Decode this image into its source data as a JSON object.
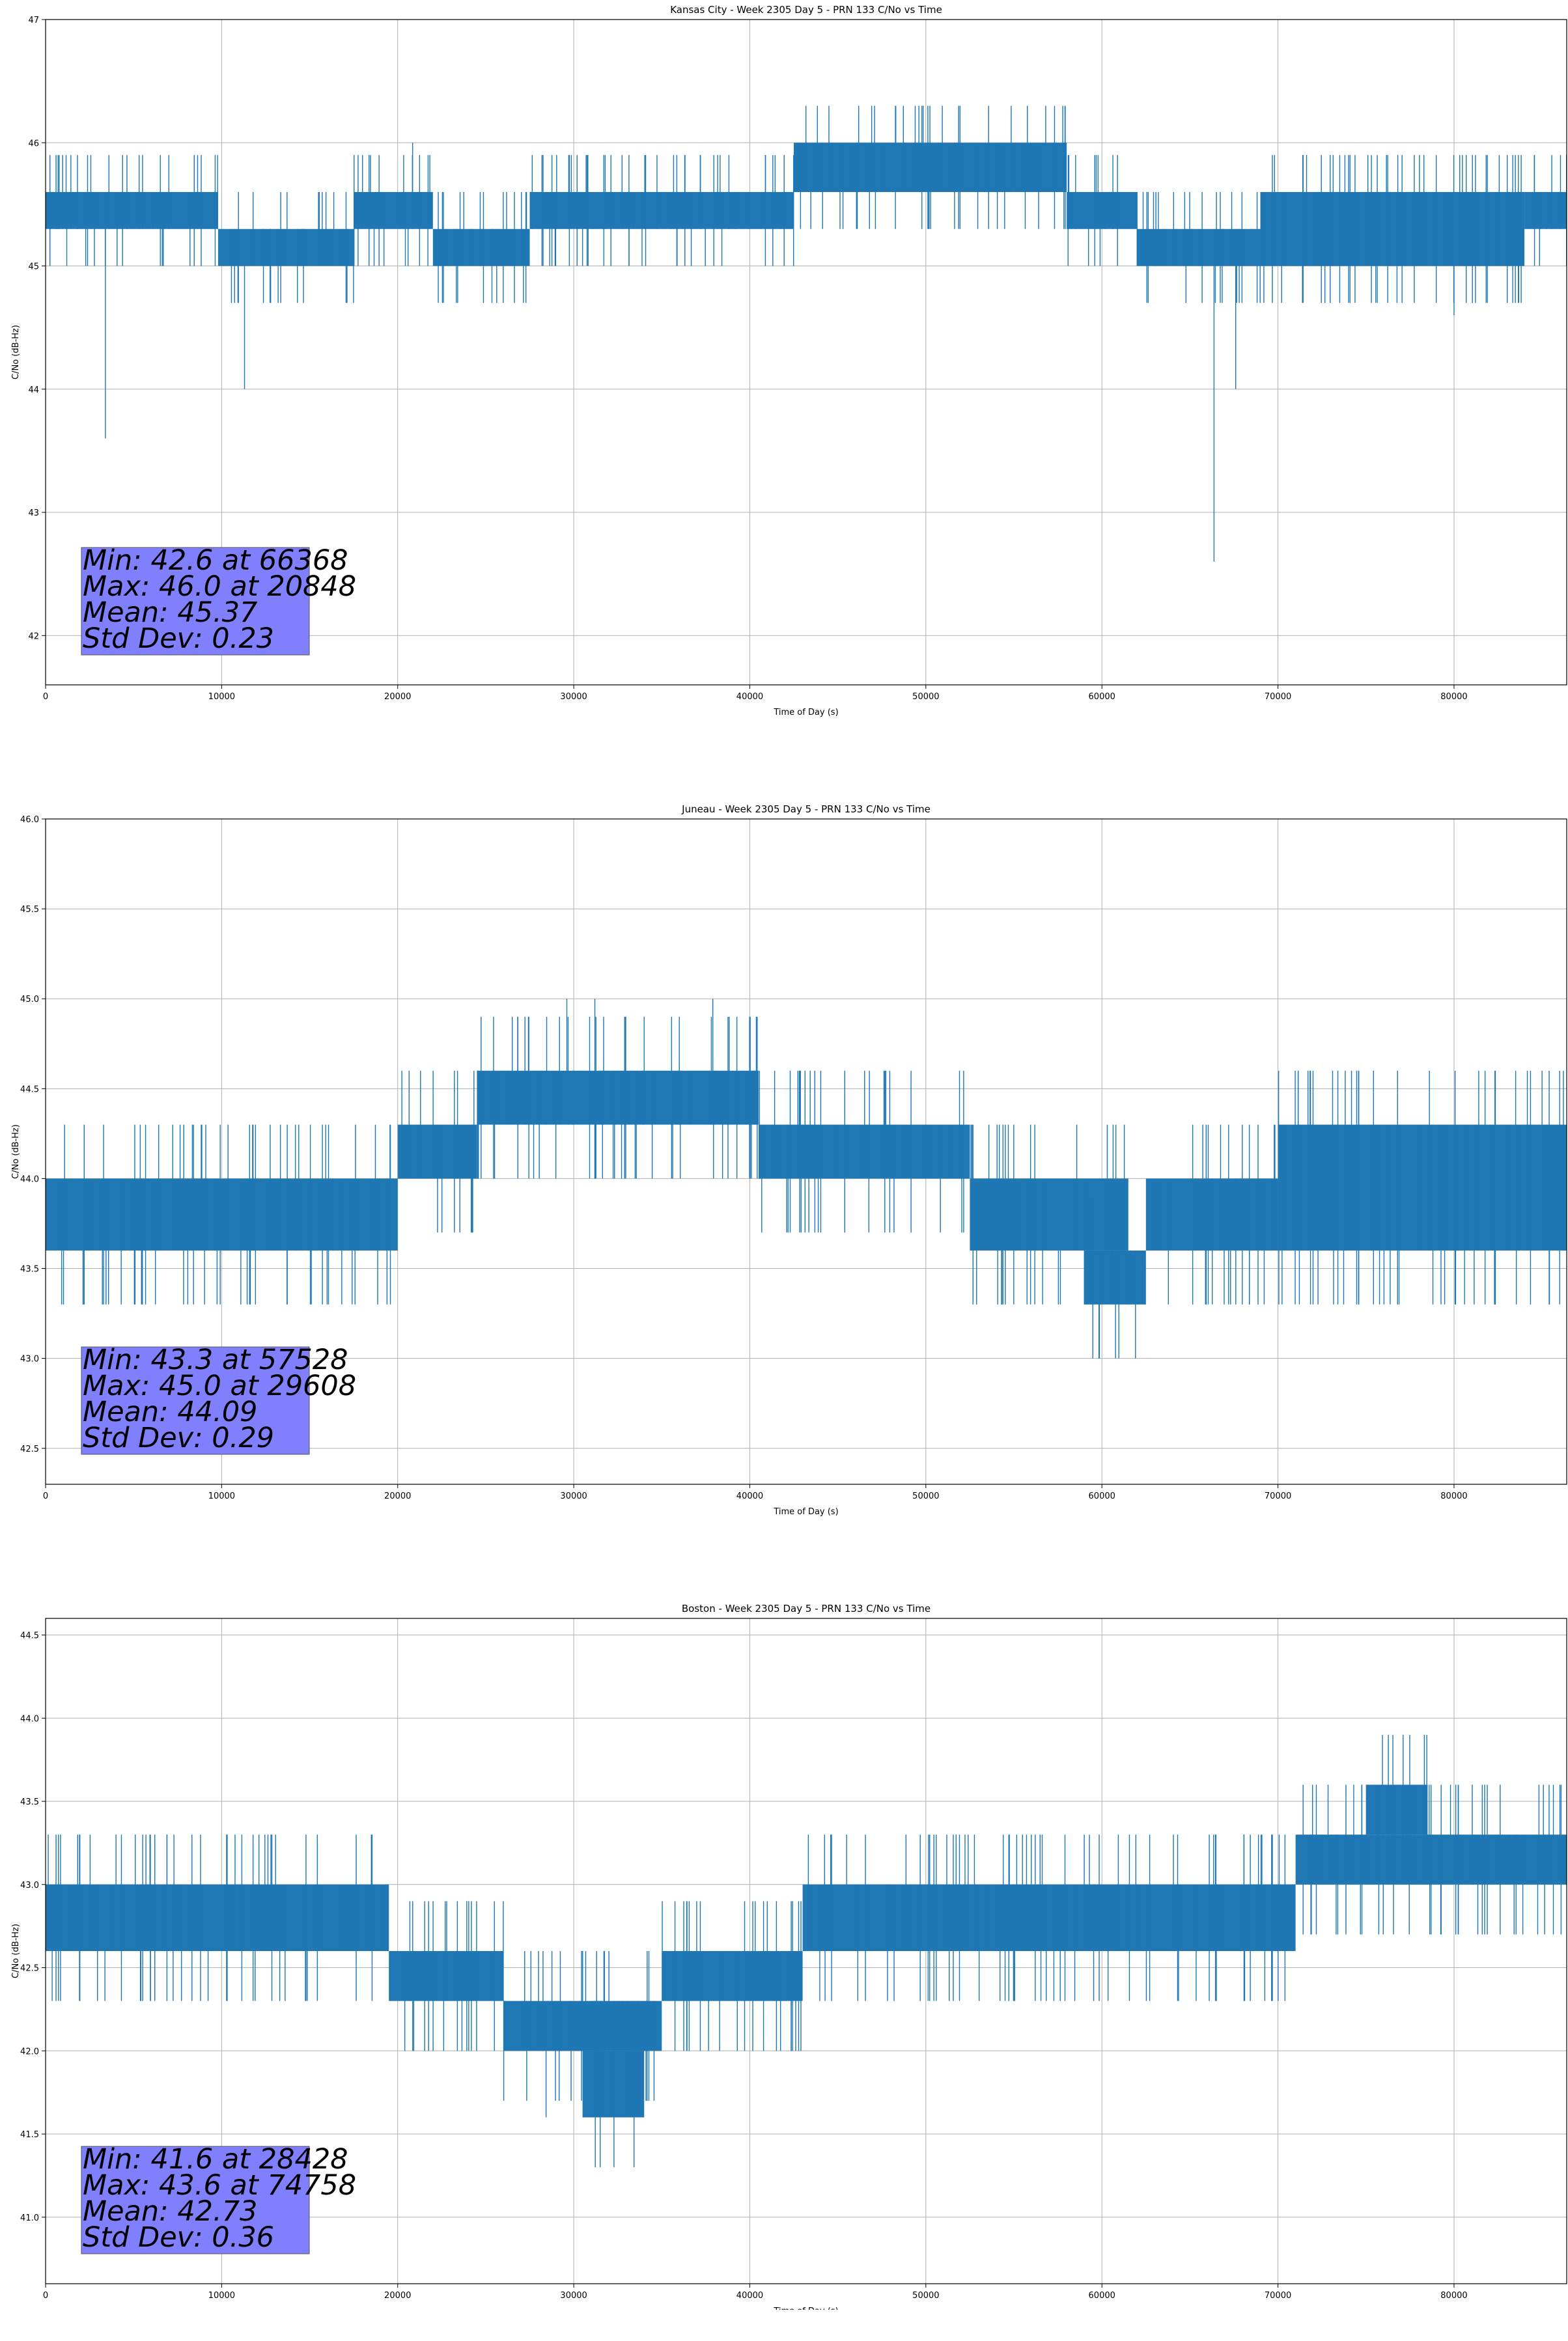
{
  "chart_data": [
    {
      "type": "line",
      "title": "Kansas City - Week 2305 Day 5 - PRN 133 C/No vs Time",
      "xlabel": "Time of Day (s)",
      "ylabel": "C/No (dB-Hz)",
      "xlim": [
        0,
        86400
      ],
      "ylim": [
        41.6,
        47.0
      ],
      "x_ticks": [
        0,
        10000,
        20000,
        30000,
        40000,
        50000,
        60000,
        70000,
        80000
      ],
      "y_ticks": [
        42,
        43,
        44,
        45,
        46,
        47
      ],
      "y_tick_labels": [
        "42",
        "43",
        "44",
        "45",
        "46",
        "47"
      ],
      "grid": true,
      "series_color": "#1f77b4",
      "band_segments": [
        {
          "x": [
            0,
            9800
          ],
          "y": [
            45.3,
            45.6
          ]
        },
        {
          "x": [
            9800,
            17500
          ],
          "y": [
            45.0,
            45.3
          ]
        },
        {
          "x": [
            17500,
            22000
          ],
          "y": [
            45.3,
            45.6
          ]
        },
        {
          "x": [
            22000,
            27500
          ],
          "y": [
            45.0,
            45.3
          ]
        },
        {
          "x": [
            27500,
            42500
          ],
          "y": [
            45.3,
            45.6
          ]
        },
        {
          "x": [
            42500,
            58000
          ],
          "y": [
            45.6,
            46.0
          ]
        },
        {
          "x": [
            58000,
            62000
          ],
          "y": [
            45.3,
            45.6
          ]
        },
        {
          "x": [
            62000,
            69000
          ],
          "y": [
            45.0,
            45.3
          ]
        },
        {
          "x": [
            69000,
            84000
          ],
          "y": [
            45.0,
            45.6
          ]
        },
        {
          "x": [
            84000,
            86400
          ],
          "y": [
            45.3,
            45.6
          ]
        }
      ],
      "spikes": [
        {
          "x": 3400,
          "y": 43.6
        },
        {
          "x": 11300,
          "y": 44.0
        },
        {
          "x": 20848,
          "y": 46.0
        },
        {
          "x": 66368,
          "y": 42.6
        },
        {
          "x": 67600,
          "y": 44.0
        },
        {
          "x": 80000,
          "y": 44.6
        }
      ],
      "stats": {
        "min": "Min: 42.6 at 66368",
        "max": "Max: 46.0 at 20848",
        "mean": "Mean: 45.37",
        "std": "Std Dev: 0.23"
      },
      "stats_box_color": "#8080ff"
    },
    {
      "type": "line",
      "title": "Juneau - Week 2305 Day 5 - PRN 133 C/No vs Time",
      "xlabel": "Time of Day (s)",
      "ylabel": "C/No (dB-Hz)",
      "xlim": [
        0,
        86400
      ],
      "ylim": [
        42.3,
        46.0
      ],
      "x_ticks": [
        0,
        10000,
        20000,
        30000,
        40000,
        50000,
        60000,
        70000,
        80000
      ],
      "y_ticks": [
        42.5,
        43.0,
        43.5,
        44.0,
        44.5,
        45.0,
        45.5,
        46.0
      ],
      "y_tick_labels": [
        "42.5",
        "43.0",
        "43.5",
        "44.0",
        "44.5",
        "45.0",
        "45.5",
        "46.0"
      ],
      "grid": true,
      "series_color": "#1f77b4",
      "band_segments": [
        {
          "x": [
            0,
            20000
          ],
          "y": [
            43.6,
            44.0
          ]
        },
        {
          "x": [
            20000,
            24500
          ],
          "y": [
            44.0,
            44.3
          ]
        },
        {
          "x": [
            24500,
            40500
          ],
          "y": [
            44.3,
            44.6
          ]
        },
        {
          "x": [
            40500,
            52500
          ],
          "y": [
            44.0,
            44.3
          ]
        },
        {
          "x": [
            52500,
            61500
          ],
          "y": [
            43.6,
            44.0
          ]
        },
        {
          "x": [
            59000,
            62500
          ],
          "y": [
            43.3,
            43.6
          ]
        },
        {
          "x": [
            62500,
            70000
          ],
          "y": [
            43.6,
            44.0
          ]
        },
        {
          "x": [
            70000,
            86400
          ],
          "y": [
            43.6,
            44.3
          ]
        }
      ],
      "spikes": [
        {
          "x": 29608,
          "y": 45.0
        },
        {
          "x": 31200,
          "y": 45.0
        },
        {
          "x": 37900,
          "y": 45.0
        },
        {
          "x": 57528,
          "y": 43.3
        },
        {
          "x": 78800,
          "y": 43.3
        },
        {
          "x": 82300,
          "y": 43.3
        },
        {
          "x": 85000,
          "y": 44.6
        }
      ],
      "stats": {
        "min": "Min: 43.3 at 57528",
        "max": "Max: 45.0 at 29608",
        "mean": "Mean: 44.09",
        "std": "Std Dev: 0.29"
      },
      "stats_box_color": "#8080ff"
    },
    {
      "type": "line",
      "title": "Boston - Week 2305 Day 5 - PRN 133 C/No vs Time",
      "xlabel": "Time of Day (s)",
      "ylabel": "C/No (dB-Hz)",
      "xlim": [
        0,
        86400
      ],
      "ylim": [
        40.6,
        44.6
      ],
      "x_ticks": [
        0,
        10000,
        20000,
        30000,
        40000,
        50000,
        60000,
        70000,
        80000
      ],
      "y_ticks": [
        41.0,
        41.5,
        42.0,
        42.5,
        43.0,
        43.5,
        44.0,
        44.5
      ],
      "y_tick_labels": [
        "41.0",
        "41.5",
        "42.0",
        "42.5",
        "43.0",
        "43.5",
        "44.0",
        "44.5"
      ],
      "grid": true,
      "series_color": "#1f77b4",
      "band_segments": [
        {
          "x": [
            0,
            19500
          ],
          "y": [
            42.6,
            43.0
          ]
        },
        {
          "x": [
            19500,
            26000
          ],
          "y": [
            42.3,
            42.6
          ]
        },
        {
          "x": [
            26000,
            35000
          ],
          "y": [
            42.0,
            42.3
          ]
        },
        {
          "x": [
            30500,
            34000
          ],
          "y": [
            41.6,
            42.0
          ]
        },
        {
          "x": [
            35000,
            43000
          ],
          "y": [
            42.3,
            42.6
          ]
        },
        {
          "x": [
            43000,
            71000
          ],
          "y": [
            42.6,
            43.0
          ]
        },
        {
          "x": [
            71000,
            86400
          ],
          "y": [
            43.0,
            43.3
          ]
        },
        {
          "x": [
            75000,
            78500
          ],
          "y": [
            43.3,
            43.6
          ]
        }
      ],
      "spikes": [
        {
          "x": 28428,
          "y": 41.6
        },
        {
          "x": 4000,
          "y": 43.3
        },
        {
          "x": 45500,
          "y": 43.3
        },
        {
          "x": 74758,
          "y": 43.6
        },
        {
          "x": 79800,
          "y": 43.6
        }
      ],
      "stats": {
        "min": "Min: 41.6 at 28428",
        "max": "Max: 43.6 at 74758",
        "mean": "Mean: 42.73",
        "std": "Std Dev: 0.36"
      },
      "stats_box_color": "#8080ff"
    }
  ]
}
